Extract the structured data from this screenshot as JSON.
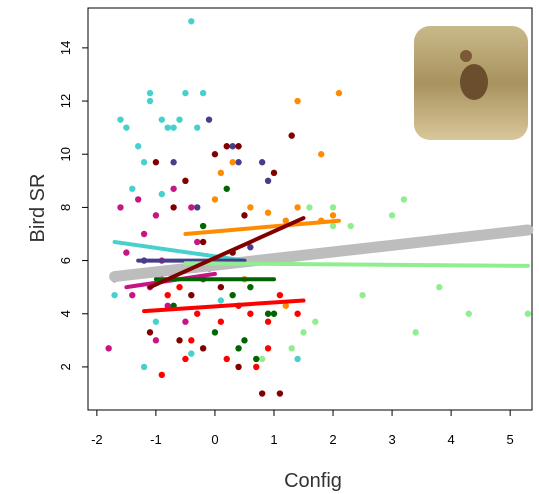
{
  "chart_data": {
    "type": "scatter",
    "x_label": "Config",
    "y_label": "Bird SR",
    "xlim": [
      -2.15,
      5.37
    ],
    "ylim": [
      0.38,
      15.5
    ],
    "xticks": [
      -2,
      -1,
      0,
      1,
      2,
      3,
      4,
      5
    ],
    "yticks": [
      2,
      4,
      6,
      8,
      10,
      12,
      14
    ],
    "series": [
      {
        "color": "#bdbdbd",
        "fit": {
          "x": [
            -1.7,
            5.3
          ],
          "y": [
            5.4,
            7.15
          ]
        }
      },
      {
        "color": "#48d1cc",
        "x": [
          -1.6,
          -1.5,
          -1.1,
          -1.1,
          -0.9,
          -0.5,
          -0.4,
          -0.8,
          -0.7,
          -0.6,
          -0.3,
          -1.3,
          -1.2,
          -1.4,
          -1.7,
          -0.2,
          -0.9,
          0.1,
          -1.0,
          1.4,
          -1.2,
          -0.4
        ],
        "y": [
          11.3,
          11.0,
          12.3,
          12.0,
          11.3,
          12.3,
          15.0,
          11.0,
          11.0,
          11.3,
          11.0,
          10.3,
          9.7,
          8.7,
          4.7,
          12.3,
          8.5,
          4.5,
          3.7,
          2.3,
          2.0,
          2.5
        ],
        "fit": {
          "x": [
            -1.7,
            0.5
          ],
          "y": [
            6.7,
            6.0
          ]
        }
      },
      {
        "color": "#483d8b",
        "x": [
          -0.7,
          -0.1,
          0.3,
          -0.3,
          0.4,
          0.8,
          0.9,
          -1.2,
          0.6
        ],
        "y": [
          9.7,
          11.3,
          10.3,
          8.0,
          9.7,
          9.7,
          9.0,
          6.0,
          6.5
        ],
        "fit": {
          "x": [
            -1.3,
            0.5
          ],
          "y": [
            6.0,
            6.0
          ]
        }
      },
      {
        "color": "#ff8c00",
        "x": [
          0.1,
          1.4,
          1.8,
          2.1,
          0.3,
          0.6,
          0.9,
          1.2,
          1.4,
          0.0,
          1.8,
          2.0,
          0.5,
          1.2
        ],
        "y": [
          9.3,
          12.0,
          10.0,
          12.3,
          9.7,
          8.0,
          7.8,
          7.5,
          8.0,
          8.3,
          7.5,
          7.7,
          5.3,
          4.3
        ],
        "fit": {
          "x": [
            -0.5,
            2.1
          ],
          "y": [
            7.0,
            7.5
          ]
        }
      },
      {
        "color": "#90ee90",
        "x": [
          1.6,
          2.0,
          2.3,
          3.0,
          3.2,
          2.5,
          3.8,
          4.3,
          5.3,
          3.4,
          1.7,
          1.5,
          2.0,
          1.3,
          0.8
        ],
        "y": [
          8.0,
          8.0,
          7.3,
          7.7,
          8.3,
          4.7,
          5.0,
          4.0,
          4.0,
          3.3,
          3.7,
          3.3,
          7.3,
          2.7,
          2.3
        ],
        "fit": {
          "x": [
            -0.5,
            5.3
          ],
          "y": [
            5.9,
            5.8
          ]
        }
      },
      {
        "color": "#c71585",
        "x": [
          -1.6,
          -1.3,
          -1.0,
          -1.2,
          -0.7,
          -0.4,
          -1.7,
          -1.5,
          -0.9,
          -0.3,
          -1.1,
          -0.6,
          -1.4,
          -0.8,
          -0.2,
          -1.0,
          -0.5,
          -1.8
        ],
        "y": [
          8.0,
          8.3,
          7.7,
          7.0,
          8.7,
          8.0,
          5.3,
          6.3,
          6.0,
          6.7,
          5.0,
          5.7,
          4.7,
          4.3,
          5.3,
          3.0,
          3.7,
          2.7
        ],
        "fit": {
          "x": [
            -1.5,
            0.0
          ],
          "y": [
            5.0,
            5.5
          ]
        }
      },
      {
        "color": "#006400",
        "x": [
          0.2,
          -0.2,
          -0.5,
          0.3,
          0.6,
          0.9,
          -0.7,
          0.0,
          0.5,
          1.0,
          0.4,
          0.7
        ],
        "y": [
          8.7,
          7.3,
          5.7,
          4.7,
          5.0,
          4.0,
          4.3,
          3.3,
          3.0,
          4.0,
          2.7,
          2.3
        ],
        "fit": {
          "x": [
            -1.0,
            1.0
          ],
          "y": [
            5.3,
            5.3
          ]
        }
      },
      {
        "color": "#ff0000",
        "x": [
          -0.8,
          -0.6,
          -0.3,
          0.1,
          0.4,
          0.9,
          1.1,
          -0.4,
          0.2,
          0.7,
          1.4,
          -0.1,
          0.6,
          0.9,
          -0.9,
          -0.5
        ],
        "y": [
          4.7,
          5.0,
          4.0,
          3.7,
          4.3,
          3.7,
          4.7,
          3.0,
          2.3,
          2.0,
          4.0,
          5.7,
          4.0,
          2.7,
          1.7,
          2.3
        ],
        "fit": {
          "x": [
            -1.2,
            1.5
          ],
          "y": [
            4.1,
            4.5
          ]
        }
      },
      {
        "color": "#800000",
        "x": [
          -1.0,
          -0.5,
          0.0,
          0.2,
          0.4,
          -0.7,
          0.5,
          1.0,
          1.3,
          -0.2,
          0.3,
          -0.9,
          -0.4,
          0.1,
          0.9,
          -1.1,
          -0.6,
          -0.2,
          0.4,
          0.8,
          1.1
        ],
        "y": [
          9.7,
          9.0,
          10.0,
          10.3,
          10.3,
          8.0,
          7.7,
          9.3,
          10.7,
          6.7,
          6.3,
          5.5,
          4.7,
          5.0,
          6.0,
          3.3,
          3.0,
          2.7,
          2.0,
          1.0,
          1.0
        ],
        "fit": {
          "x": [
            -1.1,
            1.5
          ],
          "y": [
            5.0,
            7.6
          ]
        }
      }
    ]
  }
}
